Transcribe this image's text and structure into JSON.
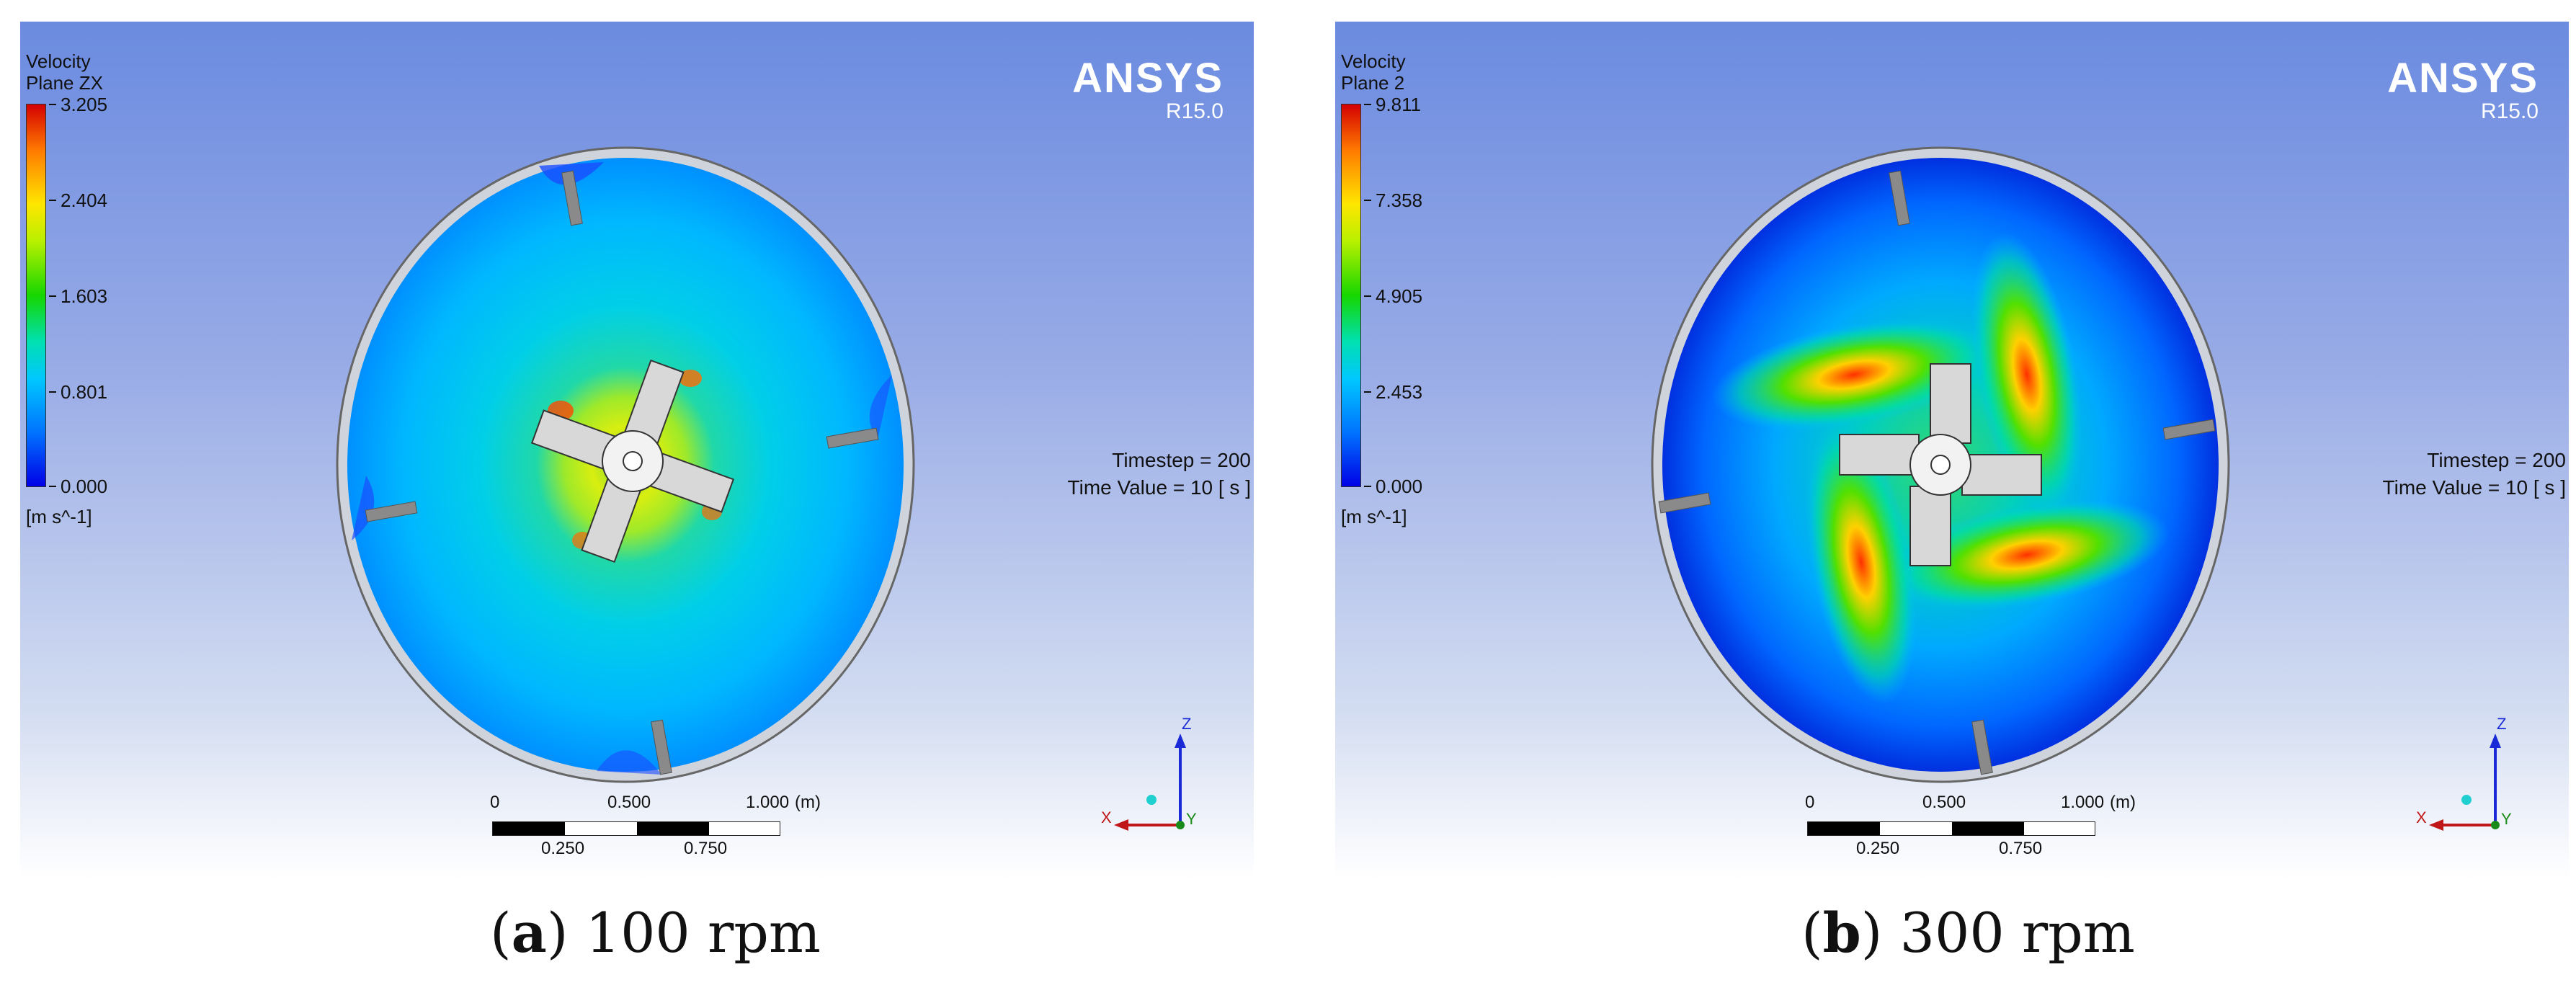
{
  "panels": [
    {
      "legend": {
        "title_line1": "Velocity",
        "title_line2": "Plane ZX",
        "ticks": [
          "3.205",
          "2.404",
          "1.603",
          "0.801",
          "0.000"
        ],
        "unit": "[m s^-1]"
      },
      "brand": {
        "name": "ANSYS",
        "version": "R15.0"
      },
      "timestep": "Timestep = 200",
      "time_value": "Time Value = 10 [ s ]",
      "scale": {
        "labels_top": [
          "0",
          "0.500",
          "1.000",
          "(m)"
        ],
        "labels_bottom": [
          "0.250",
          "0.750"
        ]
      },
      "axes": {
        "z": "Z",
        "x": "X",
        "y": "Y"
      },
      "caption": {
        "letter": "a",
        "text": "100 rpm"
      }
    },
    {
      "legend": {
        "title_line1": "Velocity",
        "title_line2": "Plane 2",
        "ticks": [
          "9.811",
          "7.358",
          "4.905",
          "2.453",
          "0.000"
        ],
        "unit": "[m s^-1]"
      },
      "brand": {
        "name": "ANSYS",
        "version": "R15.0"
      },
      "timestep": "Timestep = 200",
      "time_value": "Time Value = 10 [ s ]",
      "scale": {
        "labels_top": [
          "0",
          "0.500",
          "1.000",
          "(m)"
        ],
        "labels_bottom": [
          "0.250",
          "0.750"
        ]
      },
      "axes": {
        "z": "Z",
        "x": "X",
        "y": "Y"
      },
      "caption": {
        "letter": "b",
        "text": "300 rpm"
      }
    }
  ]
}
